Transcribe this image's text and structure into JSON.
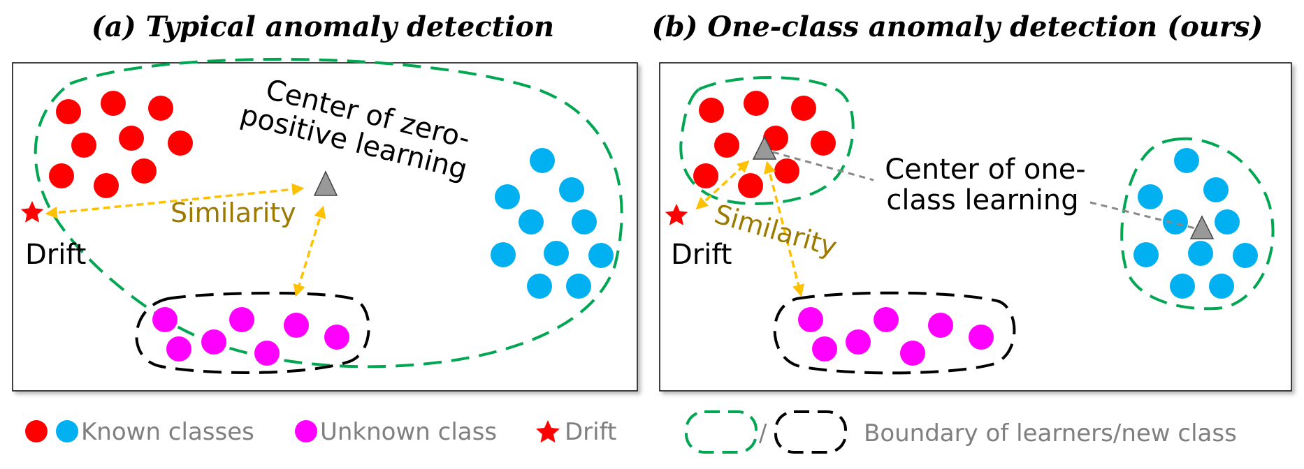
{
  "panels": {
    "a": {
      "title": "(a) Typical anomaly detection",
      "center_label_line1": "Center of zero-",
      "center_label_line2": "positive learning",
      "similarity_label": "Similarity",
      "drift_label": "Drift"
    },
    "b": {
      "title": "(b) One-class anomaly detection (ours)",
      "center_label_line1": "Center of one-",
      "center_label_line2": "class learning",
      "similarity_label": "Similarity",
      "drift_label": "Drift"
    }
  },
  "legend": {
    "known_classes": "Known classes",
    "unknown_class": "Unknown class",
    "drift": "Drift",
    "separator": "/",
    "boundary": "Boundary of learners/new class"
  },
  "colors": {
    "known_red": "#ff0000",
    "known_blue": "#00b0f0",
    "unknown_magenta": "#ff00ff",
    "drift_star": "#ff0000",
    "boundary_learner": "#00a651",
    "boundary_new_class": "#000000",
    "similarity_arrow": "#ffc000",
    "similarity_text": "#9c7a00",
    "center_marker": "#999999",
    "legend_text": "#7f7f7f"
  },
  "icons": {
    "center_marker": "gray-triangle-icon",
    "drift_marker": "red-star-icon"
  }
}
